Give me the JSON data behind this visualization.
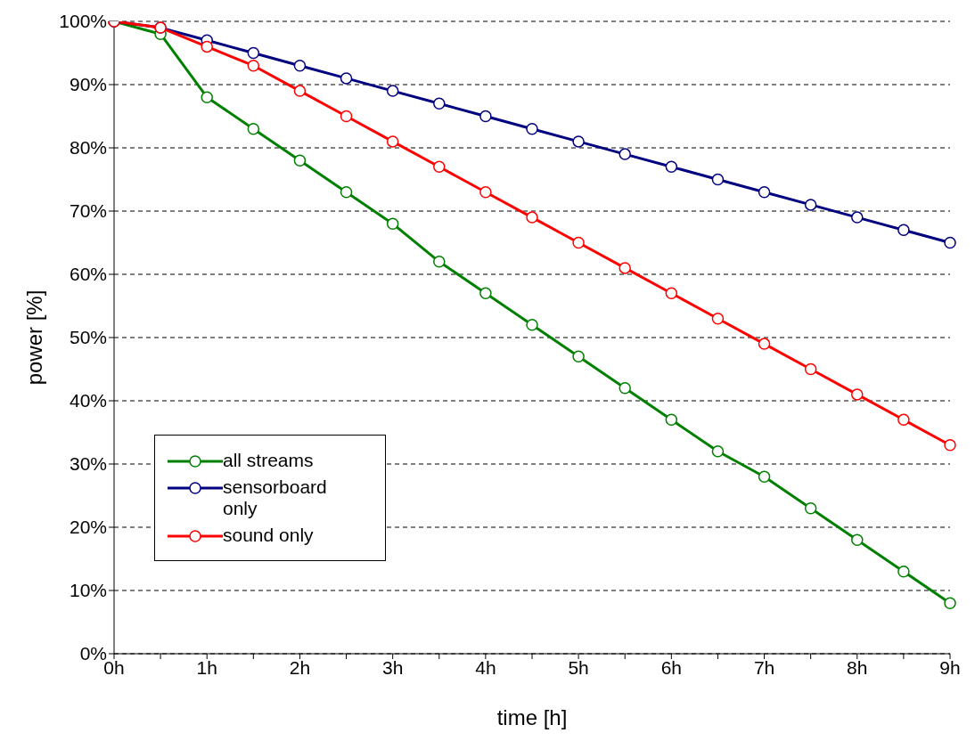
{
  "chart_data": {
    "type": "line",
    "xlabel": "time [h]",
    "ylabel": "power [%]",
    "categories": [
      "0h",
      null,
      "1h",
      null,
      "2h",
      null,
      "3h",
      null,
      "4h",
      null,
      "5h",
      null,
      "6h",
      null,
      "7h",
      null,
      "8h",
      null,
      "9h"
    ],
    "series": [
      {
        "name": "all streams",
        "color": "#008000",
        "values": [
          100,
          98,
          88,
          83,
          78,
          73,
          68,
          62,
          57,
          52,
          47,
          42,
          37,
          32,
          28,
          23,
          18,
          13,
          8
        ]
      },
      {
        "name": "sensorboard only",
        "color": "#000080",
        "values": [
          100,
          99,
          97,
          95,
          93,
          91,
          89,
          87,
          85,
          83,
          81,
          79,
          77,
          75,
          73,
          71,
          69,
          67,
          65
        ]
      },
      {
        "name": "sound only",
        "color": "#ff0000",
        "values": [
          100,
          99,
          96,
          93,
          89,
          85,
          81,
          77,
          73,
          69,
          65,
          61,
          57,
          53,
          49,
          45,
          41,
          37,
          33
        ]
      }
    ],
    "ylim": [
      0,
      100
    ],
    "yticks": [
      {
        "value": 0,
        "label": "0%"
      },
      {
        "value": 10,
        "label": "10%"
      },
      {
        "value": 20,
        "label": "20%"
      },
      {
        "value": 30,
        "label": "30%"
      },
      {
        "value": 40,
        "label": "40%"
      },
      {
        "value": 50,
        "label": "50%"
      },
      {
        "value": 60,
        "label": "60%"
      },
      {
        "value": 70,
        "label": "70%"
      },
      {
        "value": 80,
        "label": "80%"
      },
      {
        "value": 90,
        "label": "90%"
      },
      {
        "value": 100,
        "label": "100%"
      }
    ],
    "grid": "y",
    "legend": "bottom left",
    "marker": "circle",
    "line_style": "solid"
  }
}
